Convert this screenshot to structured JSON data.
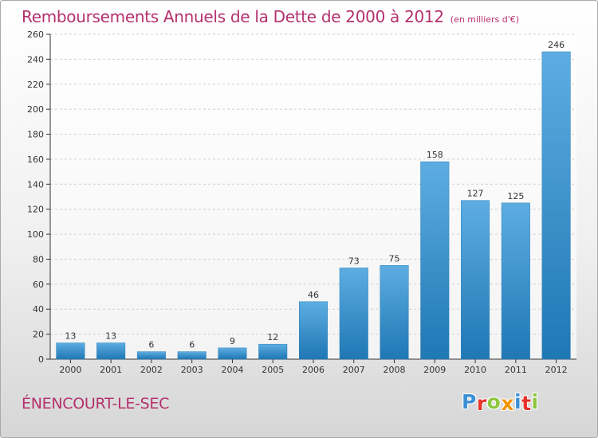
{
  "header": {
    "title": "Remboursements Annuels de la Dette de 2000 à 2012",
    "subtitle": "(en milliers d'€)"
  },
  "footer": {
    "commune": "ÉNENCOURT-LE-SEC",
    "logo_text": "Proxiti"
  },
  "colors": {
    "title": "#b5316e",
    "bar_light": "#5dade2",
    "bar_dark": "#1f77b4",
    "logo_letters": [
      "#3a8fd6",
      "#e6332a",
      "#8cc63f",
      "#f39200",
      "#3a8fd6",
      "#e6332a",
      "#8cc63f"
    ]
  },
  "chart_data": {
    "type": "bar",
    "title": "Remboursements Annuels de la Dette de 2000 à 2012",
    "subtitle": "(en milliers d'€)",
    "categories": [
      "2000",
      "2001",
      "2002",
      "2003",
      "2004",
      "2005",
      "2006",
      "2007",
      "2008",
      "2009",
      "2010",
      "2011",
      "2012"
    ],
    "values": [
      13,
      13,
      6,
      6,
      9,
      12,
      46,
      73,
      75,
      158,
      127,
      125,
      246
    ],
    "value_labels": [
      "13",
      "13",
      "6",
      "6",
      "9",
      "12",
      "46",
      "73",
      "75",
      "158",
      "127",
      "125",
      "246"
    ],
    "xlabel": "",
    "ylabel": "",
    "ylim": [
      0,
      260
    ],
    "yticks": [
      0,
      20,
      40,
      60,
      80,
      100,
      120,
      140,
      160,
      180,
      200,
      220,
      240,
      260
    ],
    "grid": true,
    "legend": "none"
  }
}
